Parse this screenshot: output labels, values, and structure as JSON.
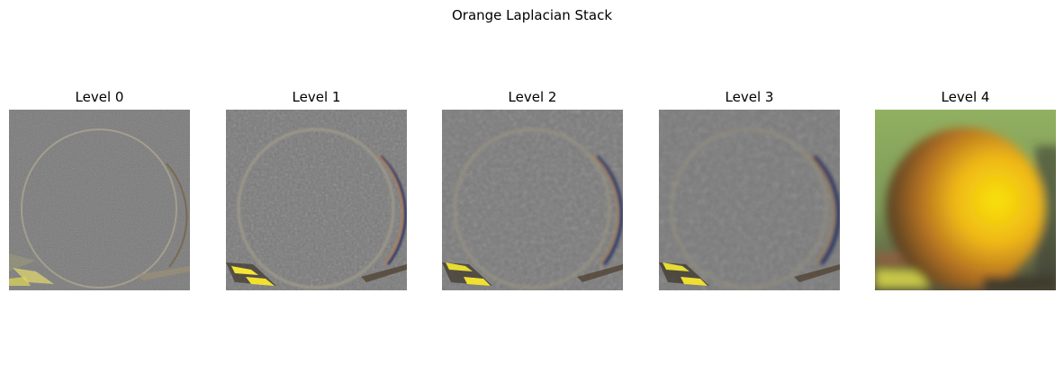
{
  "figure": {
    "title": "Orange Laplacian Stack"
  },
  "panels": [
    {
      "title": "Level 0",
      "kind": "laplacian"
    },
    {
      "title": "Level 1",
      "kind": "laplacian"
    },
    {
      "title": "Level 2",
      "kind": "laplacian"
    },
    {
      "title": "Level 3",
      "kind": "laplacian"
    },
    {
      "title": "Level 4",
      "kind": "gaussian-residual"
    }
  ],
  "colors": {
    "neutral_gray": "#7a7a7a",
    "rim_light": "#a09a8a",
    "rim_dark_blue": "#2a3560",
    "yellow_highlight": "#f0e030",
    "orange": "#e89a18",
    "orange_bright": "#f5e010",
    "orange_shadow": "#5a3a1c",
    "background_green": "#8fae62"
  }
}
